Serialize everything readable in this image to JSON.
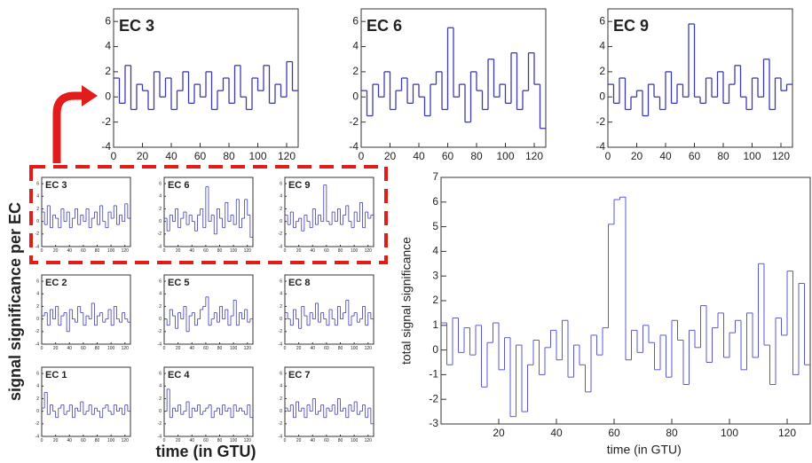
{
  "figure": {
    "ylabel": "signal significance per EC",
    "xlabel": "time (in GTU)"
  },
  "chart_data": [
    {
      "type": "line",
      "title": "EC 3",
      "step": true,
      "color": "#3b3bb0",
      "xlim": [
        0,
        128
      ],
      "ylim": [
        -4,
        7
      ],
      "xticks": [
        0,
        20,
        40,
        60,
        80,
        100,
        120
      ],
      "yticks": [
        -4,
        -2,
        0,
        2,
        4,
        6
      ],
      "x": [
        0,
        4,
        8,
        12,
        16,
        20,
        24,
        28,
        32,
        36,
        40,
        44,
        48,
        52,
        56,
        60,
        64,
        68,
        72,
        76,
        80,
        84,
        88,
        92,
        96,
        100,
        104,
        108,
        112,
        116,
        120,
        124
      ],
      "values": [
        1.5,
        -0.5,
        2.5,
        -1,
        1,
        0.5,
        -1,
        2,
        0,
        1.5,
        -1,
        0.5,
        2,
        -0.5,
        1,
        0,
        2,
        -1,
        0.5,
        1.5,
        -0.5,
        2.5,
        0,
        -1,
        1.5,
        0.5,
        2.5,
        -0.5,
        1,
        0,
        2.8,
        0.5
      ]
    },
    {
      "type": "line",
      "title": "EC 6",
      "step": true,
      "color": "#3b3bb0",
      "xlim": [
        0,
        128
      ],
      "ylim": [
        -4,
        7
      ],
      "xticks": [
        0,
        20,
        40,
        60,
        80,
        100,
        120
      ],
      "yticks": [
        -4,
        -2,
        0,
        2,
        4,
        6
      ],
      "x": [
        0,
        4,
        8,
        12,
        16,
        20,
        24,
        28,
        32,
        36,
        40,
        44,
        48,
        52,
        56,
        60,
        64,
        68,
        72,
        76,
        80,
        84,
        88,
        92,
        96,
        100,
        104,
        108,
        112,
        116,
        120,
        124
      ],
      "values": [
        0.5,
        -1.5,
        1,
        0,
        2,
        -1,
        0.5,
        1.5,
        -0.5,
        1,
        0,
        -1.5,
        1,
        2,
        -1,
        5.5,
        0,
        1,
        -2,
        2,
        0.5,
        -1,
        3,
        0,
        1,
        -0.5,
        3.5,
        -1,
        0.5,
        3.5,
        1,
        -2.5
      ]
    },
    {
      "type": "line",
      "title": "EC 9",
      "step": true,
      "color": "#3b3bb0",
      "xlim": [
        0,
        128
      ],
      "ylim": [
        -4,
        7
      ],
      "xticks": [
        0,
        20,
        40,
        60,
        80,
        100,
        120
      ],
      "yticks": [
        -4,
        -2,
        0,
        2,
        4,
        6
      ],
      "x": [
        0,
        4,
        8,
        12,
        16,
        20,
        24,
        28,
        32,
        36,
        40,
        44,
        48,
        52,
        56,
        60,
        64,
        68,
        72,
        76,
        80,
        84,
        88,
        92,
        96,
        100,
        104,
        108,
        112,
        116,
        120,
        124
      ],
      "values": [
        1,
        -0.5,
        1.5,
        -1,
        0,
        0.5,
        -1.5,
        1,
        0,
        -1,
        2,
        -0.5,
        1,
        0,
        5.8,
        0,
        -0.5,
        1.5,
        0,
        2,
        -0.5,
        1,
        2.5,
        0,
        -1,
        1.5,
        0,
        3,
        -1,
        1.5,
        0.5,
        1
      ]
    },
    {
      "type": "line",
      "title": "EC 2",
      "step": true,
      "color": "#3b3bb0",
      "xlim": [
        0,
        128
      ],
      "ylim": [
        -4,
        7
      ],
      "xticks": [
        0,
        20,
        40,
        60,
        80,
        100,
        120
      ],
      "yticks": [
        -4,
        -2,
        0,
        2,
        4,
        6
      ],
      "x": [
        0,
        4,
        8,
        12,
        16,
        20,
        24,
        28,
        32,
        36,
        40,
        44,
        48,
        52,
        56,
        60,
        64,
        68,
        72,
        76,
        80,
        84,
        88,
        92,
        96,
        100,
        104,
        108,
        112,
        116,
        120,
        124
      ],
      "values": [
        0.5,
        1,
        -1,
        1.5,
        0,
        2,
        -1,
        0.5,
        1,
        -2,
        1.5,
        0,
        -0.5,
        2,
        1,
        -1,
        0.5,
        0,
        2.5,
        -1,
        0.5,
        1,
        -0.5,
        0,
        1.5,
        -1,
        2,
        0,
        -0.5,
        1,
        0,
        -0.5
      ]
    },
    {
      "type": "line",
      "title": "EC 5",
      "step": true,
      "color": "#3b3bb0",
      "xlim": [
        0,
        128
      ],
      "ylim": [
        -4,
        7
      ],
      "xticks": [
        0,
        20,
        40,
        60,
        80,
        100,
        120
      ],
      "yticks": [
        -4,
        -2,
        0,
        2,
        4,
        6
      ],
      "x": [
        0,
        4,
        8,
        12,
        16,
        20,
        24,
        28,
        32,
        36,
        40,
        44,
        48,
        52,
        56,
        60,
        64,
        68,
        72,
        76,
        80,
        84,
        88,
        92,
        96,
        100,
        104,
        108,
        112,
        116,
        120,
        124
      ],
      "values": [
        0,
        -1,
        1.5,
        0.5,
        -1.5,
        1,
        0,
        2,
        -2,
        0.5,
        1,
        -1,
        0,
        1.5,
        2,
        3.5,
        -1,
        0,
        1,
        -0.5,
        2,
        0,
        1.5,
        -1,
        0.5,
        3,
        -1,
        1,
        0,
        1.5,
        -0.5,
        0
      ]
    },
    {
      "type": "line",
      "title": "EC 8",
      "step": true,
      "color": "#3b3bb0",
      "xlim": [
        0,
        128
      ],
      "ylim": [
        -4,
        7
      ],
      "xticks": [
        0,
        20,
        40,
        60,
        80,
        100,
        120
      ],
      "yticks": [
        -4,
        -2,
        0,
        2,
        4,
        6
      ],
      "x": [
        0,
        4,
        8,
        12,
        16,
        20,
        24,
        28,
        32,
        36,
        40,
        44,
        48,
        52,
        56,
        60,
        64,
        68,
        72,
        76,
        80,
        84,
        88,
        92,
        96,
        100,
        104,
        108,
        112,
        116,
        120,
        124
      ],
      "values": [
        1,
        0,
        -1,
        1.5,
        0,
        -1.5,
        2,
        0.5,
        -1,
        1,
        0,
        2.5,
        -0.5,
        1,
        0,
        -1,
        1.5,
        0,
        -1,
        2,
        0,
        1,
        3,
        -1,
        0.5,
        1,
        -0.5,
        0,
        2,
        -1,
        1,
        0
      ]
    },
    {
      "type": "line",
      "title": "EC 1",
      "step": true,
      "color": "#3b3bb0",
      "xlim": [
        0,
        128
      ],
      "ylim": [
        -4,
        7
      ],
      "xticks": [
        0,
        20,
        40,
        60,
        80,
        100,
        120
      ],
      "yticks": [
        -4,
        -2,
        0,
        2,
        4,
        6
      ],
      "x": [
        0,
        4,
        8,
        12,
        16,
        20,
        24,
        28,
        32,
        36,
        40,
        44,
        48,
        52,
        56,
        60,
        64,
        68,
        72,
        76,
        80,
        84,
        88,
        92,
        96,
        100,
        104,
        108,
        112,
        116,
        120,
        124
      ],
      "values": [
        0.5,
        3,
        -0.5,
        1,
        0,
        -1,
        0.5,
        1,
        -0.5,
        0,
        1,
        -1,
        0.5,
        0,
        1.5,
        -0.5,
        0,
        1,
        -0.5,
        0.5,
        0,
        -1,
        0.5,
        1,
        0,
        -0.5,
        1,
        0,
        0.5,
        -0.5,
        1,
        0
      ]
    },
    {
      "type": "line",
      "title": "EC 4",
      "step": true,
      "color": "#3b3bb0",
      "xlim": [
        0,
        128
      ],
      "ylim": [
        -4,
        7
      ],
      "xticks": [
        0,
        20,
        40,
        60,
        80,
        100,
        120
      ],
      "yticks": [
        -4,
        -2,
        0,
        2,
        4,
        6
      ],
      "x": [
        0,
        4,
        8,
        12,
        16,
        20,
        24,
        28,
        32,
        36,
        40,
        44,
        48,
        52,
        56,
        60,
        64,
        68,
        72,
        76,
        80,
        84,
        88,
        92,
        96,
        100,
        104,
        108,
        112,
        116,
        120,
        124
      ],
      "values": [
        0,
        3.5,
        -1,
        0.5,
        0,
        1,
        -0.5,
        0,
        1.5,
        -1,
        0.5,
        0,
        1,
        -0.5,
        0,
        0.5,
        1,
        -1,
        0,
        0.5,
        -0.5,
        1,
        0,
        0.5,
        -1,
        1,
        0,
        0.5,
        0,
        -0.5,
        1,
        -1
      ]
    },
    {
      "type": "line",
      "title": "EC 7",
      "step": true,
      "color": "#3b3bb0",
      "xlim": [
        0,
        128
      ],
      "ylim": [
        -4,
        7
      ],
      "xticks": [
        0,
        20,
        40,
        60,
        80,
        100,
        120
      ],
      "yticks": [
        -4,
        -2,
        0,
        2,
        4,
        6
      ],
      "x": [
        0,
        4,
        8,
        12,
        16,
        20,
        24,
        28,
        32,
        36,
        40,
        44,
        48,
        52,
        56,
        60,
        64,
        68,
        72,
        76,
        80,
        84,
        88,
        92,
        96,
        100,
        104,
        108,
        112,
        116,
        120,
        124
      ],
      "values": [
        0.5,
        0,
        1,
        -1,
        1.5,
        0,
        0.5,
        -1,
        1,
        0,
        2,
        -0.5,
        0,
        1,
        -1,
        0.5,
        0,
        1,
        -0.5,
        2,
        0,
        0.5,
        -1,
        1,
        0,
        1.5,
        -0.5,
        0,
        1,
        -1,
        0.5,
        -2
      ]
    },
    {
      "type": "line",
      "step": true,
      "color": "#5a5ad0",
      "xlabel": "time (in GTU)",
      "ylabel": "total signal significance",
      "xlim": [
        0,
        128
      ],
      "ylim": [
        -3,
        7
      ],
      "xticks": [
        20,
        40,
        60,
        80,
        100,
        120
      ],
      "yticks": [
        -3,
        -2,
        -1,
        0,
        1,
        2,
        3,
        4,
        5,
        6,
        7
      ],
      "x": [
        0,
        2,
        4,
        6,
        8,
        10,
        12,
        14,
        16,
        18,
        20,
        22,
        24,
        26,
        28,
        30,
        32,
        34,
        36,
        38,
        40,
        42,
        44,
        46,
        48,
        50,
        52,
        54,
        56,
        58,
        60,
        62,
        64,
        66,
        68,
        70,
        72,
        74,
        76,
        78,
        80,
        82,
        84,
        86,
        88,
        90,
        92,
        94,
        96,
        98,
        100,
        102,
        104,
        106,
        108,
        110,
        112,
        114,
        116,
        118,
        120,
        122,
        124,
        126
      ],
      "values": [
        1.1,
        -0.6,
        1.3,
        -0.1,
        0.9,
        -0.2,
        1.0,
        -1.5,
        0.3,
        1.1,
        -0.8,
        0.5,
        -2.7,
        0.2,
        -2.5,
        -0.6,
        0.4,
        -1.0,
        0.1,
        0.8,
        -0.4,
        1.2,
        -1.1,
        0.2,
        -0.6,
        -1.7,
        0.6,
        -0.2,
        0.9,
        5.1,
        6.1,
        6.2,
        -0.4,
        0.8,
        -0.1,
        1.0,
        0.3,
        -0.8,
        0.6,
        -1.1,
        1.2,
        0.4,
        -1.4,
        0.8,
        0.1,
        1.8,
        -0.5,
        0.9,
        1.5,
        -0.3,
        0.7,
        1.2,
        -0.8,
        1.5,
        -0.3,
        3.5,
        0.2,
        -1.4,
        1.3,
        0.6,
        3.2,
        -1.0,
        2.7,
        -0.6
      ]
    }
  ]
}
